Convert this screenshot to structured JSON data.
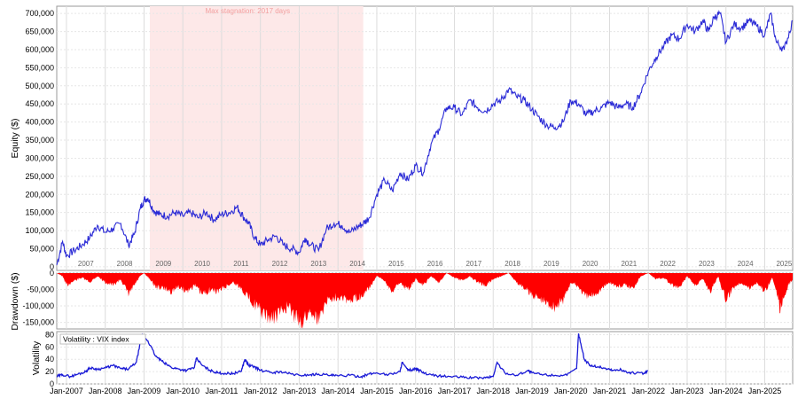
{
  "chart_data": [
    {
      "type": "line",
      "ylabel": "Equity ($)",
      "ylim": [
        -10000,
        720000
      ],
      "yticks": [
        0,
        50000,
        100000,
        150000,
        200000,
        250000,
        300000,
        350000,
        400000,
        450000,
        500000,
        550000,
        600000,
        650000,
        700000
      ],
      "ytick_labels": [
        "0",
        "50,000",
        "100,000",
        "150,000",
        "200,000",
        "250,000",
        "300,000",
        "350,000",
        "400,000",
        "450,000",
        "500,000",
        "550,000",
        "600,000",
        "650,000",
        "700,000"
      ],
      "xlim": [
        2006.75,
        2025.72
      ],
      "year_labels": [
        "2007",
        "2008",
        "2009",
        "2010",
        "2011",
        "2012",
        "2013",
        "2014",
        "2015",
        "2016",
        "2017",
        "2018",
        "2019",
        "2020",
        "2021",
        "2022",
        "2023",
        "2024",
        "2025"
      ],
      "shaded_region": [
        2009.15,
        2014.65
      ],
      "annotation": "Max stagnation: 2017 days",
      "grid": true,
      "line_color": "#2a2ad6",
      "shade_color": "#fde8e8",
      "x": [
        2006.75,
        2006.9,
        2007.0,
        2007.2,
        2007.4,
        2007.6,
        2007.8,
        2008.0,
        2008.2,
        2008.4,
        2008.6,
        2008.75,
        2008.9,
        2009.0,
        2009.1,
        2009.25,
        2009.4,
        2009.6,
        2009.8,
        2010.0,
        2010.2,
        2010.4,
        2010.6,
        2010.8,
        2011.0,
        2011.2,
        2011.4,
        2011.55,
        2011.7,
        2011.85,
        2012.0,
        2012.2,
        2012.4,
        2012.6,
        2012.8,
        2013.0,
        2013.15,
        2013.3,
        2013.5,
        2013.7,
        2013.9,
        2014.1,
        2014.3,
        2014.5,
        2014.65,
        2014.8,
        2015.0,
        2015.2,
        2015.4,
        2015.6,
        2015.8,
        2016.0,
        2016.2,
        2016.4,
        2016.6,
        2016.8,
        2017.0,
        2017.2,
        2017.4,
        2017.6,
        2017.8,
        2018.0,
        2018.2,
        2018.4,
        2018.6,
        2018.8,
        2019.0,
        2019.2,
        2019.4,
        2019.6,
        2019.8,
        2020.0,
        2020.2,
        2020.4,
        2020.6,
        2020.8,
        2021.0,
        2021.2,
        2021.4,
        2021.6,
        2021.8,
        2022.0,
        2022.2,
        2022.4,
        2022.6,
        2022.8,
        2023.0,
        2023.2,
        2023.4,
        2023.55,
        2023.7,
        2023.85,
        2024.0,
        2024.2,
        2024.4,
        2024.6,
        2024.8,
        2025.0,
        2025.15,
        2025.3,
        2025.5,
        2025.72
      ],
      "values": [
        5000,
        70000,
        30000,
        45000,
        60000,
        80000,
        115000,
        95000,
        105000,
        120000,
        60000,
        90000,
        160000,
        185000,
        190000,
        155000,
        145000,
        140000,
        150000,
        140000,
        150000,
        135000,
        150000,
        130000,
        145000,
        150000,
        165000,
        140000,
        120000,
        80000,
        60000,
        75000,
        85000,
        60000,
        50000,
        40000,
        80000,
        60000,
        45000,
        105000,
        120000,
        115000,
        95000,
        110000,
        120000,
        135000,
        200000,
        240000,
        210000,
        260000,
        240000,
        280000,
        260000,
        340000,
        380000,
        440000,
        440000,
        420000,
        460000,
        440000,
        430000,
        450000,
        460000,
        490000,
        470000,
        460000,
        435000,
        410000,
        390000,
        385000,
        400000,
        460000,
        450000,
        420000,
        430000,
        440000,
        455000,
        440000,
        450000,
        440000,
        480000,
        540000,
        580000,
        610000,
        640000,
        630000,
        670000,
        650000,
        680000,
        650000,
        690000,
        700000,
        620000,
        670000,
        660000,
        680000,
        665000,
        640000,
        700000,
        620000,
        600000,
        680000
      ]
    },
    {
      "type": "area",
      "ylabel": "Drawdown ($)",
      "ylim": [
        -170000,
        0
      ],
      "yticks": [
        0,
        -50000,
        -100000,
        -150000
      ],
      "ytick_labels": [
        "0",
        "-50,000",
        "-100,000",
        "-150,000"
      ],
      "fill_color": "#ff0000",
      "x": [
        2006.75,
        2006.9,
        2007.0,
        2007.2,
        2007.4,
        2007.6,
        2007.8,
        2008.0,
        2008.2,
        2008.4,
        2008.6,
        2008.75,
        2008.9,
        2009.0,
        2009.15,
        2009.3,
        2009.5,
        2009.7,
        2009.9,
        2010.1,
        2010.3,
        2010.5,
        2010.7,
        2010.9,
        2011.1,
        2011.3,
        2011.5,
        2011.7,
        2011.9,
        2012.1,
        2012.3,
        2012.5,
        2012.7,
        2012.9,
        2013.1,
        2013.3,
        2013.5,
        2013.7,
        2013.9,
        2014.1,
        2014.3,
        2014.5,
        2014.65,
        2014.8,
        2015.0,
        2015.2,
        2015.4,
        2015.6,
        2015.8,
        2016.0,
        2016.2,
        2016.4,
        2016.6,
        2016.8,
        2017.0,
        2017.2,
        2017.4,
        2017.6,
        2017.8,
        2018.0,
        2018.2,
        2018.4,
        2018.6,
        2018.8,
        2019.0,
        2019.2,
        2019.4,
        2019.6,
        2019.8,
        2020.0,
        2020.2,
        2020.4,
        2020.6,
        2020.8,
        2021.0,
        2021.2,
        2021.4,
        2021.6,
        2021.8,
        2022.0,
        2022.2,
        2022.4,
        2022.6,
        2022.8,
        2023.0,
        2023.2,
        2023.4,
        2023.6,
        2023.8,
        2024.0,
        2024.2,
        2024.4,
        2024.6,
        2024.8,
        2025.0,
        2025.2,
        2025.4,
        2025.6,
        2025.72
      ],
      "values": [
        0,
        -10000,
        -40000,
        -25000,
        -15000,
        -30000,
        -10000,
        -30000,
        -40000,
        -20000,
        -70000,
        -40000,
        -10000,
        0,
        -20000,
        -45000,
        -50000,
        -60000,
        -45000,
        -60000,
        -40000,
        -70000,
        -55000,
        -60000,
        -45000,
        -30000,
        -50000,
        -80000,
        -110000,
        -140000,
        -150000,
        -130000,
        -110000,
        -145000,
        -160000,
        -120000,
        -155000,
        -90000,
        -80000,
        -75000,
        -95000,
        -80000,
        -70000,
        -50000,
        -10000,
        -25000,
        -60000,
        -30000,
        -55000,
        -20000,
        -40000,
        -10000,
        -30000,
        0,
        -15000,
        -25000,
        -10000,
        -30000,
        -40000,
        -20000,
        -10000,
        0,
        -30000,
        -50000,
        -70000,
        -85000,
        -100000,
        -110000,
        -90000,
        -30000,
        -45000,
        -80000,
        -70000,
        -50000,
        -30000,
        -45000,
        -40000,
        -50000,
        -10000,
        0,
        -20000,
        -15000,
        -40000,
        -50000,
        -10000,
        -40000,
        -20000,
        -60000,
        -10000,
        -90000,
        -45000,
        -30000,
        -50000,
        -30000,
        -60000,
        -15000,
        -120000,
        -40000,
        -20000
      ]
    },
    {
      "type": "line",
      "ylabel": "Volatility",
      "legend": "Volatility : VIX index",
      "ylim": [
        0,
        85
      ],
      "yticks": [
        0,
        20,
        40,
        60,
        80
      ],
      "ytick_labels": [
        "0",
        "20",
        "40",
        "60",
        "80"
      ],
      "line_color": "#1a1ad6",
      "x_tick_labels": [
        "Jan-2007",
        "Jan-2008",
        "Jan-2009",
        "Jan-2010",
        "Jan-2011",
        "Jan-2012",
        "Jan-2013",
        "Jan-2014",
        "Jan-2015",
        "Jan-2016",
        "Jan-2017",
        "Jan-2018",
        "Jan-2019",
        "Jan-2020",
        "Jan-2021",
        "Jan-2022",
        "Jan-2023",
        "Jan-2024",
        "Jan-2025"
      ],
      "x": [
        2006.75,
        2006.9,
        2007.1,
        2007.3,
        2007.5,
        2007.6,
        2007.8,
        2008.0,
        2008.2,
        2008.4,
        2008.6,
        2008.8,
        2008.95,
        2009.1,
        2009.3,
        2009.5,
        2009.7,
        2009.9,
        2010.1,
        2010.3,
        2010.35,
        2010.5,
        2010.7,
        2010.9,
        2011.1,
        2011.3,
        2011.5,
        2011.6,
        2011.7,
        2011.85,
        2012.0,
        2012.3,
        2012.5,
        2012.8,
        2013.0,
        2013.3,
        2013.5,
        2013.8,
        2014.0,
        2014.3,
        2014.6,
        2014.8,
        2015.0,
        2015.3,
        2015.6,
        2015.65,
        2015.8,
        2016.0,
        2016.1,
        2016.3,
        2016.6,
        2016.9,
        2017.2,
        2017.5,
        2017.8,
        2018.0,
        2018.1,
        2018.3,
        2018.6,
        2018.9,
        2019.0,
        2019.3,
        2019.6,
        2019.9,
        2020.15,
        2020.2,
        2020.35,
        2020.5,
        2020.7,
        2020.9,
        2021.1,
        2021.3,
        2021.5,
        2021.7,
        2021.9,
        2022.0,
        2022.2,
        2022.5,
        2022.8,
        2023.1,
        2023.4,
        2023.7,
        2024.0,
        2024.3,
        2024.6,
        2024.8,
        2025.0,
        2025.3,
        2025.6
      ],
      "values": [
        12,
        15,
        12,
        16,
        20,
        26,
        24,
        26,
        30,
        25,
        24,
        35,
        80,
        70,
        45,
        35,
        27,
        24,
        22,
        27,
        42,
        30,
        22,
        18,
        17,
        17,
        20,
        40,
        30,
        28,
        22,
        18,
        20,
        16,
        14,
        15,
        16,
        14,
        13,
        14,
        12,
        16,
        18,
        15,
        20,
        35,
        22,
        24,
        22,
        15,
        13,
        12,
        11,
        10,
        10,
        12,
        35,
        18,
        14,
        22,
        18,
        15,
        14,
        14,
        25,
        82,
        40,
        30,
        28,
        25,
        22,
        23,
        18,
        18,
        17,
        22,
        null,
        null,
        null,
        null,
        null,
        null,
        null,
        null,
        null,
        null,
        null,
        null,
        null
      ]
    }
  ]
}
